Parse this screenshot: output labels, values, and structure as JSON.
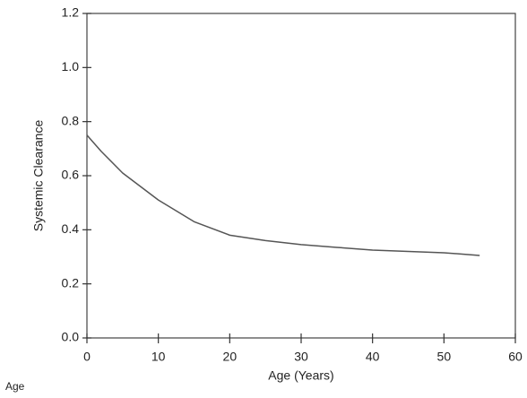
{
  "chart_data": {
    "type": "line",
    "xlabel": "Age (Years)",
    "ylabel": "Systemic Clearance",
    "x": [
      0,
      2,
      5,
      10,
      15,
      20,
      25,
      30,
      35,
      40,
      45,
      50,
      55
    ],
    "series": [
      {
        "color": "#555555",
        "values": [
          0.75,
          0.69,
          0.61,
          0.51,
          0.43,
          0.38,
          0.36,
          0.345,
          0.335,
          0.325,
          0.32,
          0.315,
          0.305
        ]
      }
    ],
    "xlim": [
      0,
      60
    ],
    "xticks": [
      0,
      10,
      20,
      30,
      40,
      50,
      60
    ],
    "ylim": [
      0,
      1.2
    ],
    "yticks": [
      {
        "value": 0,
        "label": "0.0"
      },
      0.2,
      0.4,
      0.6,
      0.8,
      {
        "value": 1,
        "label": "1.0"
      },
      1.2
    ],
    "grid": false
  },
  "caption": "Age"
}
